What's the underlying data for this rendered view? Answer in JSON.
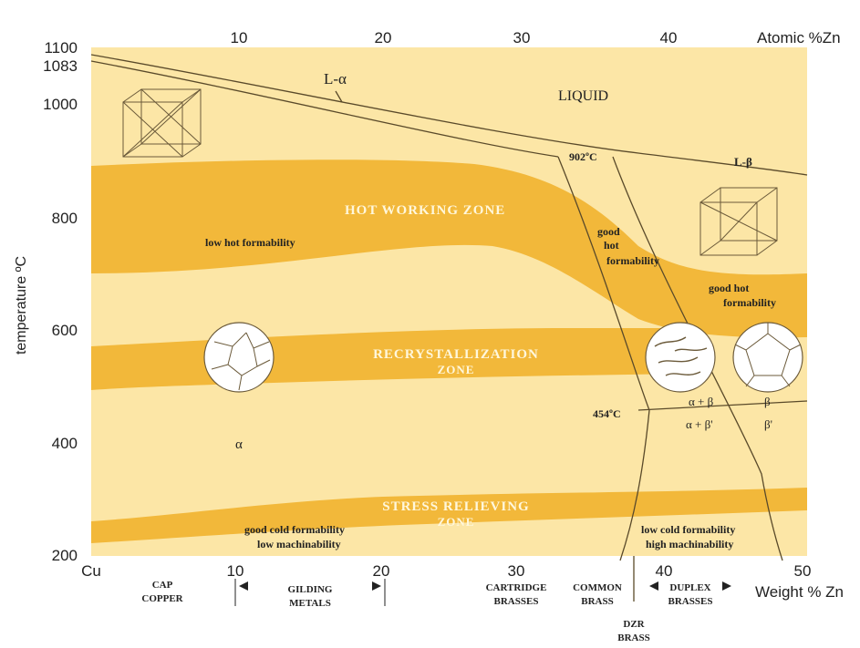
{
  "diagram": {
    "temp_ticks": [
      "1100",
      "1083",
      "1000",
      "800",
      "600",
      "400",
      "200"
    ],
    "top_axis": {
      "ticks": [
        "10",
        "20",
        "30",
        "40"
      ],
      "label": "Atomic %Zn"
    },
    "bottom_axis": {
      "ticks": [
        "Cu",
        "10",
        "20",
        "30",
        "40",
        "50"
      ],
      "label": "Weight % Zn"
    },
    "y_label": "temperature ºC",
    "regions": {
      "liquid": "LIQUID",
      "l_alpha": "L-α",
      "l_beta": "L-β",
      "hot_zone": "HOT WORKING ZONE",
      "recryst_zone": [
        "RECRYSTALLIZATION",
        "ZONE"
      ],
      "stress_zone": [
        "STRESS RELIEVING",
        "ZONE"
      ],
      "alpha": "α",
      "alpha_beta": "α + β",
      "alpha_beta_prime": "α + β'",
      "beta": "β",
      "beta_prime": "β'"
    },
    "temps": {
      "t902": "902ºC",
      "t454": "454ºC"
    },
    "notes": {
      "low_hot": "low hot formability",
      "good_hot": [
        "good",
        "hot",
        "formability"
      ],
      "good_hot2": [
        "good hot",
        "formability"
      ],
      "good_cold": [
        "good cold formability",
        "low machinability"
      ],
      "low_cold": [
        "low cold formability",
        "high machinability"
      ]
    },
    "categories": {
      "cap_copper": [
        "CAP",
        "COPPER"
      ],
      "gilding": [
        "GILDING",
        "METALS"
      ],
      "cartridge": [
        "CARTRIDGE",
        "BRASSES"
      ],
      "common": [
        "COMMON",
        "BRASS"
      ],
      "duplex": [
        "DUPLEX",
        "BRASSES"
      ],
      "dzr": [
        "DZR",
        "BRASS"
      ]
    },
    "colors": {
      "bg": "#fce6a6",
      "band": "#f2b83a",
      "line": "#5a4a2a"
    }
  }
}
